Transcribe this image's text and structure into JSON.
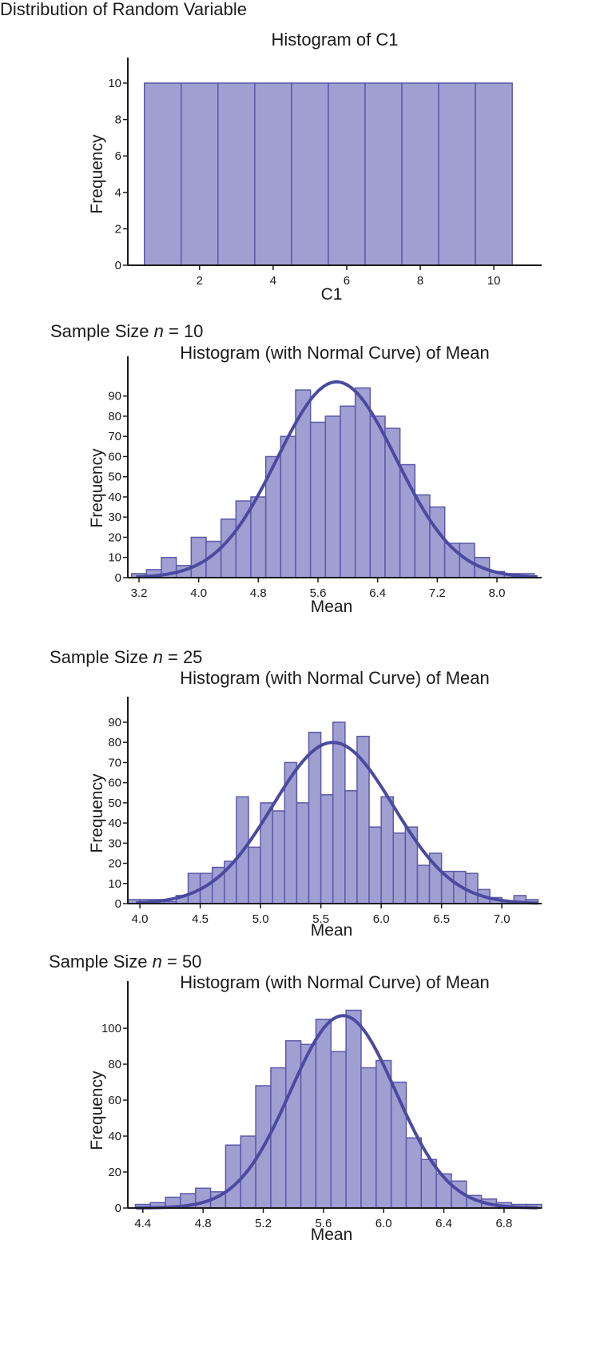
{
  "page_title": "Distribution of Random Variable",
  "sections": [
    {
      "heading": {
        "prefix": "",
        "var": "",
        "suffix": ""
      }
    },
    {
      "heading": {
        "prefix": "Sample Size ",
        "var": "n",
        "suffix": " = 10"
      }
    },
    {
      "heading": {
        "prefix": "Sample Size ",
        "var": "n",
        "suffix": " = 25"
      }
    },
    {
      "heading": {
        "prefix": "Sample Size ",
        "var": "n",
        "suffix": " = 50"
      }
    }
  ],
  "colors": {
    "bar_fill": "#a09fd2",
    "bar_stroke": "#5b5aa8",
    "curve": "#4a4aa0"
  },
  "chart_data": [
    {
      "type": "bar",
      "title": "Histogram of C1",
      "xlabel": "C1",
      "ylabel": "Frequency",
      "xlim": [
        0.05,
        11.3
      ],
      "ylim": [
        0,
        10
      ],
      "bin_width": 1,
      "bins": [
        {
          "x": 1,
          "y": 10
        },
        {
          "x": 2,
          "y": 10
        },
        {
          "x": 3,
          "y": 10
        },
        {
          "x": 4,
          "y": 10
        },
        {
          "x": 5,
          "y": 10
        },
        {
          "x": 6,
          "y": 10
        },
        {
          "x": 7,
          "y": 10
        },
        {
          "x": 8,
          "y": 10
        },
        {
          "x": 9,
          "y": 10
        },
        {
          "x": 10,
          "y": 10
        }
      ],
      "xticks": [
        2,
        4,
        6,
        8,
        10
      ],
      "xtick_labels": [
        "2",
        "4",
        "6",
        "8",
        "10"
      ],
      "yticks": [
        0,
        2,
        4,
        6,
        8,
        10
      ],
      "ytick_labels": [
        "0",
        "2",
        "4",
        "6",
        "8",
        "10"
      ]
    },
    {
      "type": "bar",
      "title": "Histogram (with Normal Curve) of Mean",
      "xlabel": "Mean",
      "ylabel": "Frequency",
      "xlim": [
        3.05,
        8.6
      ],
      "ylim": [
        0,
        97
      ],
      "bin_width": 0.2,
      "bins": [
        {
          "x": 3.2,
          "y": 2
        },
        {
          "x": 3.4,
          "y": 4
        },
        {
          "x": 3.6,
          "y": 10
        },
        {
          "x": 3.8,
          "y": 6
        },
        {
          "x": 4.0,
          "y": 20
        },
        {
          "x": 4.2,
          "y": 18
        },
        {
          "x": 4.4,
          "y": 29
        },
        {
          "x": 4.6,
          "y": 38
        },
        {
          "x": 4.8,
          "y": 40
        },
        {
          "x": 5.0,
          "y": 60
        },
        {
          "x": 5.2,
          "y": 70
        },
        {
          "x": 5.4,
          "y": 93
        },
        {
          "x": 5.6,
          "y": 77
        },
        {
          "x": 5.8,
          "y": 80
        },
        {
          "x": 6.0,
          "y": 85
        },
        {
          "x": 6.2,
          "y": 94
        },
        {
          "x": 6.4,
          "y": 80
        },
        {
          "x": 6.6,
          "y": 74
        },
        {
          "x": 6.8,
          "y": 56
        },
        {
          "x": 7.0,
          "y": 41
        },
        {
          "x": 7.2,
          "y": 35
        },
        {
          "x": 7.4,
          "y": 17
        },
        {
          "x": 7.6,
          "y": 17
        },
        {
          "x": 7.8,
          "y": 10
        },
        {
          "x": 8.0,
          "y": 3
        },
        {
          "x": 8.2,
          "y": 2
        },
        {
          "x": 8.4,
          "y": 2
        }
      ],
      "normal_curve": {
        "mean": 5.85,
        "sd": 0.8,
        "peak": 97
      },
      "xticks": [
        3.2,
        4.0,
        4.8,
        5.6,
        6.4,
        7.2,
        8.0
      ],
      "xtick_labels": [
        "3.2",
        "4.0",
        "4.8",
        "5.6",
        "6.4",
        "7.2",
        "8.0"
      ],
      "yticks": [
        0,
        10,
        20,
        30,
        40,
        50,
        60,
        70,
        80,
        90
      ],
      "ytick_labels": [
        "0",
        "10",
        "20",
        "30",
        "40",
        "50",
        "60",
        "70",
        "80",
        "90"
      ]
    },
    {
      "type": "bar",
      "title": "Histogram (with Normal Curve) of Mean",
      "xlabel": "Mean",
      "ylabel": "Frequency",
      "xlim": [
        3.9,
        7.33
      ],
      "ylim": [
        0,
        90
      ],
      "bin_width": 0.1,
      "bins": [
        {
          "x": 3.95,
          "y": 2
        },
        {
          "x": 4.05,
          "y": 2
        },
        {
          "x": 4.15,
          "y": 2
        },
        {
          "x": 4.25,
          "y": 1
        },
        {
          "x": 4.35,
          "y": 4
        },
        {
          "x": 4.45,
          "y": 15
        },
        {
          "x": 4.55,
          "y": 15
        },
        {
          "x": 4.65,
          "y": 18
        },
        {
          "x": 4.75,
          "y": 21
        },
        {
          "x": 4.85,
          "y": 53
        },
        {
          "x": 4.95,
          "y": 28
        },
        {
          "x": 5.05,
          "y": 50
        },
        {
          "x": 5.15,
          "y": 46
        },
        {
          "x": 5.25,
          "y": 70
        },
        {
          "x": 5.35,
          "y": 50
        },
        {
          "x": 5.45,
          "y": 85
        },
        {
          "x": 5.55,
          "y": 54
        },
        {
          "x": 5.65,
          "y": 90
        },
        {
          "x": 5.75,
          "y": 56
        },
        {
          "x": 5.85,
          "y": 83
        },
        {
          "x": 5.95,
          "y": 38
        },
        {
          "x": 6.05,
          "y": 53
        },
        {
          "x": 6.15,
          "y": 35
        },
        {
          "x": 6.25,
          "y": 38
        },
        {
          "x": 6.35,
          "y": 19
        },
        {
          "x": 6.45,
          "y": 25
        },
        {
          "x": 6.55,
          "y": 16
        },
        {
          "x": 6.65,
          "y": 16
        },
        {
          "x": 6.75,
          "y": 15
        },
        {
          "x": 6.85,
          "y": 7
        },
        {
          "x": 6.95,
          "y": 3
        },
        {
          "x": 7.05,
          "y": 1
        },
        {
          "x": 7.15,
          "y": 4
        },
        {
          "x": 7.25,
          "y": 2
        }
      ],
      "normal_curve": {
        "mean": 5.6,
        "sd": 0.5,
        "peak": 80
      },
      "xticks": [
        4.0,
        4.5,
        5.0,
        5.5,
        6.0,
        6.5,
        7.0
      ],
      "xtick_labels": [
        "4.0",
        "4.5",
        "5.0",
        "5.5",
        "6.0",
        "6.5",
        "7.0"
      ],
      "yticks": [
        0,
        10,
        20,
        30,
        40,
        50,
        60,
        70,
        80,
        90
      ],
      "ytick_labels": [
        "0",
        "10",
        "20",
        "30",
        "40",
        "50",
        "60",
        "70",
        "80",
        "90"
      ]
    },
    {
      "type": "bar",
      "title": "Histogram (with Normal Curve) of Mean",
      "xlabel": "Mean",
      "ylabel": "Frequency",
      "xlim": [
        4.3,
        7.05
      ],
      "ylim": [
        0,
        112
      ],
      "bin_width": 0.1,
      "bins": [
        {
          "x": 4.4,
          "y": 2
        },
        {
          "x": 4.5,
          "y": 3
        },
        {
          "x": 4.6,
          "y": 6
        },
        {
          "x": 4.7,
          "y": 8
        },
        {
          "x": 4.8,
          "y": 11
        },
        {
          "x": 4.9,
          "y": 9
        },
        {
          "x": 5.0,
          "y": 35
        },
        {
          "x": 5.1,
          "y": 40
        },
        {
          "x": 5.2,
          "y": 68
        },
        {
          "x": 5.3,
          "y": 78
        },
        {
          "x": 5.4,
          "y": 93
        },
        {
          "x": 5.5,
          "y": 91
        },
        {
          "x": 5.6,
          "y": 105
        },
        {
          "x": 5.7,
          "y": 87
        },
        {
          "x": 5.8,
          "y": 110
        },
        {
          "x": 5.9,
          "y": 78
        },
        {
          "x": 6.0,
          "y": 82
        },
        {
          "x": 6.1,
          "y": 70
        },
        {
          "x": 6.2,
          "y": 39
        },
        {
          "x": 6.3,
          "y": 27
        },
        {
          "x": 6.4,
          "y": 19
        },
        {
          "x": 6.5,
          "y": 15
        },
        {
          "x": 6.6,
          "y": 7
        },
        {
          "x": 6.7,
          "y": 5
        },
        {
          "x": 6.8,
          "y": 3
        },
        {
          "x": 6.9,
          "y": 2
        },
        {
          "x": 7.0,
          "y": 2
        }
      ],
      "normal_curve": {
        "mean": 5.73,
        "sd": 0.35,
        "peak": 107
      },
      "xticks": [
        4.4,
        4.8,
        5.2,
        5.6,
        6.0,
        6.4,
        6.8
      ],
      "xtick_labels": [
        "4.4",
        "4.8",
        "5.2",
        "5.6",
        "6.0",
        "6.4",
        "6.8"
      ],
      "yticks": [
        0,
        20,
        40,
        60,
        80,
        100
      ],
      "ytick_labels": [
        "0",
        "20",
        "40",
        "60",
        "80",
        "100"
      ]
    }
  ]
}
